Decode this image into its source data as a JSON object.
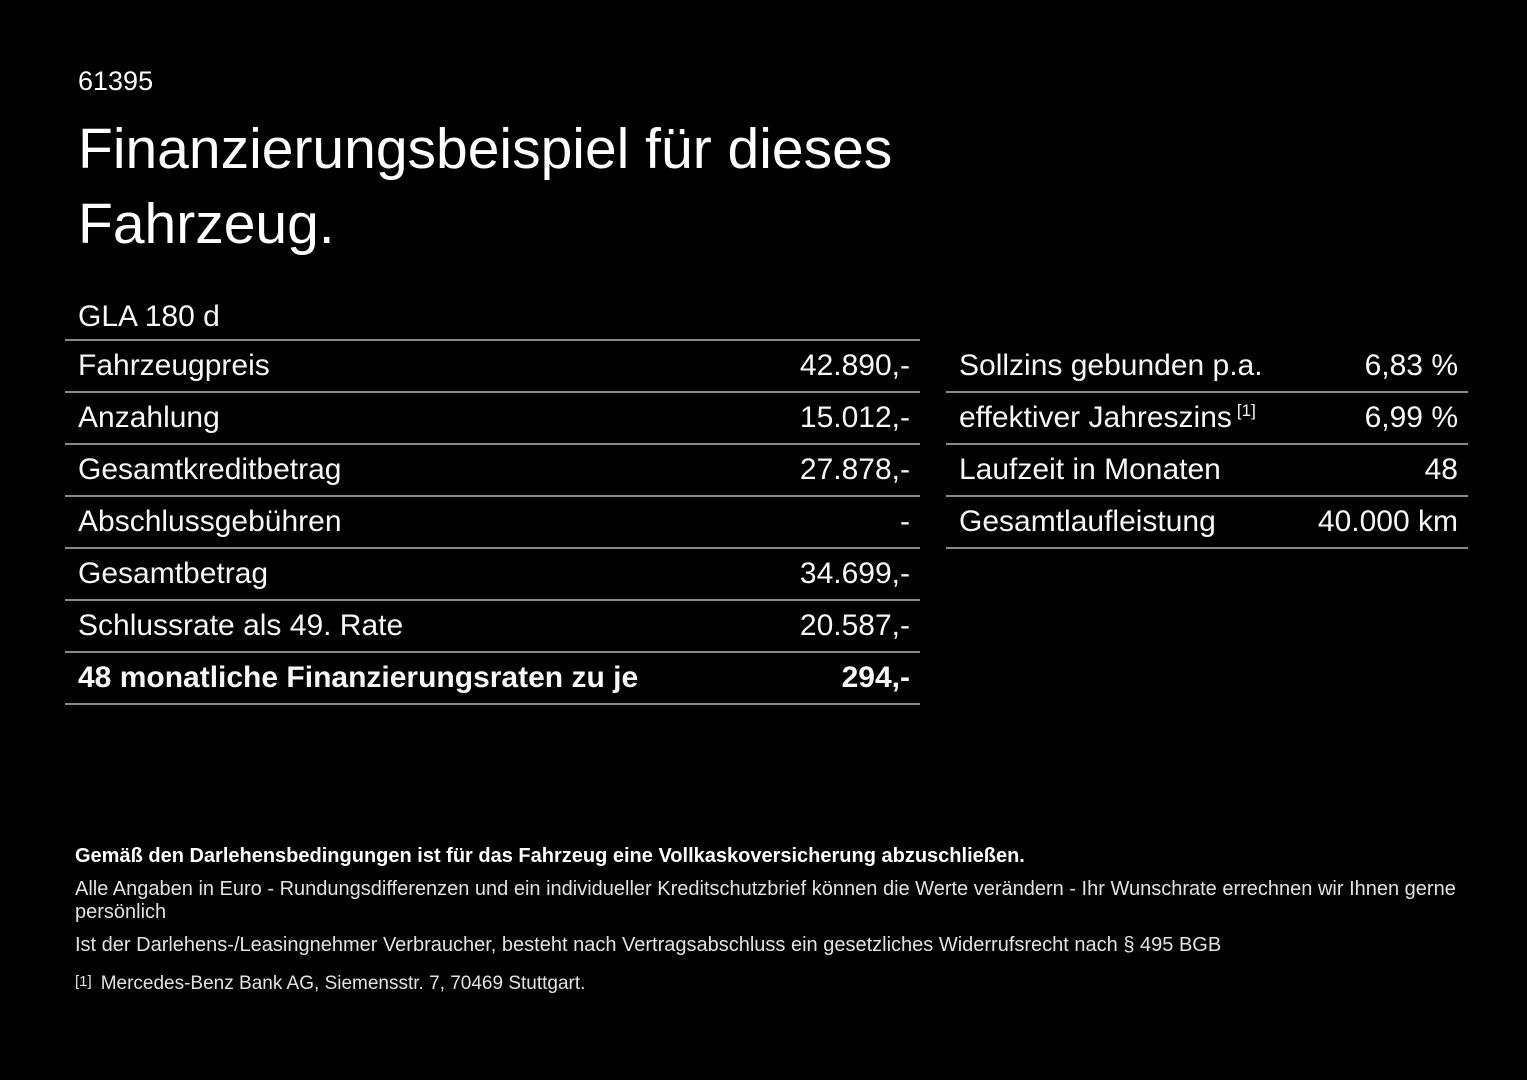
{
  "page": {
    "id_number": "61395",
    "title_line1": "Finanzierungsbeispiel für dieses",
    "title_line2": "Fahrzeug.",
    "model": "GLA 180 d"
  },
  "left_table": {
    "rows": [
      {
        "label": "Fahrzeugpreis",
        "value": "42.890,-"
      },
      {
        "label": "Anzahlung",
        "value": "15.012,-"
      },
      {
        "label": "Gesamtkreditbetrag",
        "value": "27.878,-"
      },
      {
        "label": "Abschlussgebühren",
        "value": "-"
      },
      {
        "label": "Gesamtbetrag",
        "value": "34.699,-"
      },
      {
        "label": "Schlussrate als 49. Rate",
        "value": "20.587,-"
      },
      {
        "label": "48 monatliche Finanzierungsraten zu je",
        "value": "294,-"
      }
    ]
  },
  "right_table": {
    "rows": [
      {
        "label": "Sollzins gebunden p.a.",
        "superscript": "",
        "value": "6,83 %"
      },
      {
        "label": "effektiver Jahreszins",
        "superscript": "[1]",
        "value": "6,99 %"
      },
      {
        "label": "Laufzeit in Monaten",
        "superscript": "",
        "value": "48"
      },
      {
        "label": "Gesamtlaufleistung",
        "superscript": "",
        "value": "40.000 km"
      }
    ]
  },
  "footer": {
    "bold_line": "Gemäß den Darlehensbedingungen ist für das Fahrzeug eine Vollkaskoversicherung abzuschließen.",
    "line2": "Alle Angaben in Euro - Rundungsdifferenzen und ein individueller Kreditschutzbrief können die Werte verändern - Ihr Wunschrate errechnen wir Ihnen gerne persönlich",
    "line3": "Ist der Darlehens-/Leasingnehmer Verbraucher, besteht nach Vertragsabschluss ein gesetzliches Widerrufsrecht nach § 495 BGB",
    "footnote_marker": "[1]",
    "footnote_text": "Mercedes-Benz Bank AG, Siemensstr. 7, 70469 Stuttgart."
  },
  "colors": {
    "background": "#000000",
    "primary_text": "#ffffff",
    "secondary_text": "#e2e2e2",
    "divider": "#888888"
  }
}
